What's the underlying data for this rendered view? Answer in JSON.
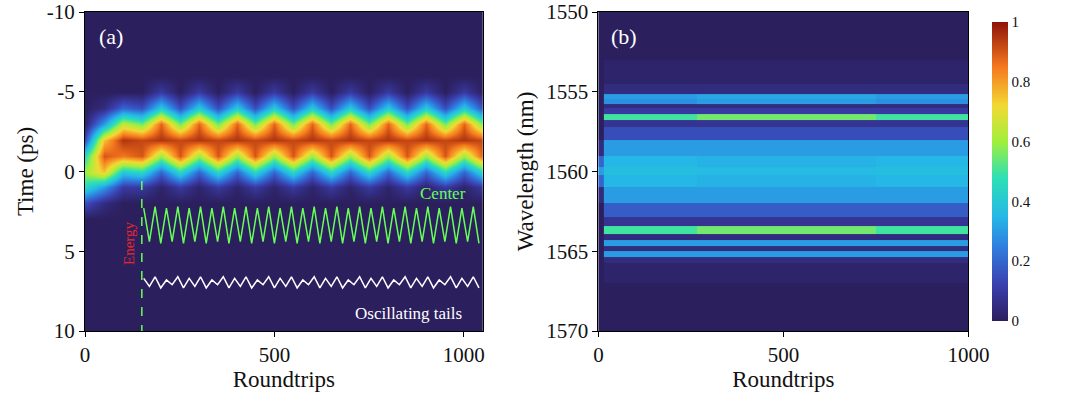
{
  "chart_data": [
    {
      "type": "heatmap",
      "panel_label": "(a)",
      "x_label": "Roundtrips",
      "y_label": "Time (ps)",
      "xlim": [
        0,
        1050
      ],
      "xticks": [
        0,
        500,
        1000
      ],
      "ylim": [
        10,
        -10
      ],
      "yticks": [
        -10,
        -5,
        0,
        5,
        10
      ],
      "x": [
        0,
        50,
        100,
        150,
        200,
        250,
        300,
        350,
        400,
        450,
        500,
        550,
        600,
        650,
        700,
        750,
        800,
        850,
        900,
        950,
        1000,
        1050
      ],
      "y": [
        -10,
        -9,
        -8,
        -7,
        -6,
        -5,
        -4,
        -3,
        -2,
        -1,
        0,
        1,
        2,
        3,
        4,
        5,
        6,
        7,
        8,
        9,
        10
      ],
      "z": [
        [
          0,
          0,
          0,
          0,
          0,
          0,
          0,
          0,
          0,
          0,
          0,
          0,
          0,
          0,
          0,
          0,
          0,
          0,
          0,
          0,
          0,
          0
        ],
        [
          0,
          0,
          0,
          0,
          0,
          0,
          0,
          0,
          0,
          0,
          0,
          0,
          0,
          0,
          0,
          0,
          0,
          0,
          0,
          0,
          0,
          0
        ],
        [
          0,
          0,
          0,
          0,
          0,
          0,
          0,
          0,
          0,
          0,
          0,
          0,
          0,
          0,
          0,
          0,
          0,
          0,
          0,
          0,
          0,
          0
        ],
        [
          0,
          0,
          0,
          0,
          0,
          0,
          0,
          0,
          0,
          0,
          0,
          0,
          0,
          0,
          0,
          0,
          0,
          0,
          0,
          0,
          0,
          0
        ],
        [
          0,
          0,
          0,
          0,
          0,
          0,
          0,
          0,
          0,
          0,
          0,
          0,
          0,
          0,
          0,
          0,
          0,
          0,
          0,
          0,
          0,
          0
        ],
        [
          0,
          0,
          0,
          0,
          0.1,
          0,
          0.1,
          0,
          0.1,
          0,
          0.1,
          0,
          0.1,
          0,
          0.1,
          0,
          0.1,
          0,
          0.1,
          0,
          0.1,
          0
        ],
        [
          0,
          0.05,
          0.2,
          0.15,
          0.4,
          0.15,
          0.4,
          0.15,
          0.4,
          0.15,
          0.4,
          0.15,
          0.4,
          0.15,
          0.4,
          0.15,
          0.4,
          0.15,
          0.4,
          0.15,
          0.4,
          0.15
        ],
        [
          0.02,
          0.3,
          0.65,
          0.55,
          0.88,
          0.55,
          0.88,
          0.55,
          0.88,
          0.55,
          0.88,
          0.55,
          0.88,
          0.55,
          0.88,
          0.55,
          0.88,
          0.55,
          0.88,
          0.55,
          0.88,
          0.55
        ],
        [
          0.15,
          0.75,
          0.95,
          0.92,
          0.95,
          0.92,
          0.95,
          0.92,
          0.95,
          0.92,
          0.95,
          0.92,
          0.95,
          0.92,
          0.95,
          0.92,
          0.95,
          0.92,
          0.95,
          0.92,
          0.95,
          0.92
        ],
        [
          0.45,
          0.9,
          0.85,
          0.9,
          0.6,
          0.9,
          0.6,
          0.9,
          0.6,
          0.9,
          0.6,
          0.9,
          0.6,
          0.9,
          0.6,
          0.9,
          0.6,
          0.9,
          0.6,
          0.9,
          0.6,
          0.9
        ],
        [
          0.6,
          0.75,
          0.4,
          0.45,
          0.2,
          0.45,
          0.2,
          0.45,
          0.2,
          0.45,
          0.2,
          0.45,
          0.2,
          0.45,
          0.2,
          0.45,
          0.2,
          0.45,
          0.2,
          0.45,
          0.2,
          0.45
        ],
        [
          0.45,
          0.3,
          0.1,
          0.1,
          0.02,
          0.1,
          0.02,
          0.1,
          0.02,
          0.1,
          0.02,
          0.1,
          0.02,
          0.1,
          0.02,
          0.1,
          0.02,
          0.1,
          0.02,
          0.1,
          0.02,
          0.1
        ],
        [
          0.15,
          0.05,
          0,
          0,
          0,
          0,
          0,
          0,
          0,
          0,
          0,
          0,
          0,
          0,
          0,
          0,
          0,
          0,
          0,
          0,
          0,
          0
        ],
        [
          0,
          0,
          0,
          0,
          0,
          0,
          0,
          0,
          0,
          0,
          0,
          0,
          0,
          0,
          0,
          0,
          0,
          0,
          0,
          0,
          0,
          0
        ],
        [
          0,
          0,
          0,
          0,
          0,
          0,
          0,
          0,
          0,
          0,
          0,
          0,
          0,
          0,
          0,
          0,
          0,
          0,
          0,
          0,
          0,
          0
        ],
        [
          0,
          0,
          0,
          0,
          0,
          0,
          0,
          0,
          0,
          0,
          0,
          0,
          0,
          0,
          0,
          0,
          0,
          0,
          0,
          0,
          0,
          0
        ],
        [
          0,
          0,
          0,
          0,
          0,
          0,
          0,
          0,
          0,
          0,
          0,
          0,
          0,
          0,
          0,
          0,
          0,
          0,
          0,
          0,
          0,
          0
        ],
        [
          0,
          0,
          0,
          0,
          0,
          0,
          0,
          0,
          0,
          0,
          0,
          0,
          0,
          0,
          0,
          0,
          0,
          0,
          0,
          0,
          0,
          0
        ],
        [
          0,
          0,
          0,
          0,
          0,
          0,
          0,
          0,
          0,
          0,
          0,
          0,
          0,
          0,
          0,
          0,
          0,
          0,
          0,
          0,
          0,
          0
        ],
        [
          0,
          0,
          0,
          0,
          0,
          0,
          0,
          0,
          0,
          0,
          0,
          0,
          0,
          0,
          0,
          0,
          0,
          0,
          0,
          0,
          0,
          0
        ],
        [
          0,
          0,
          0,
          0,
          0,
          0,
          0,
          0,
          0,
          0,
          0,
          0,
          0,
          0,
          0,
          0,
          0,
          0,
          0,
          0,
          0,
          0
        ]
      ],
      "series": [
        {
          "name": "Center",
          "type": "line",
          "color": "#66ff55",
          "label_x": 1010,
          "label_y": 1.4,
          "x": [
            155,
            170,
            185,
            200,
            215,
            230,
            245,
            260,
            275,
            290,
            305,
            320,
            335,
            350,
            365,
            380,
            395,
            410,
            425,
            440,
            455,
            470,
            485,
            500,
            515,
            530,
            545,
            560,
            575,
            590,
            605,
            620,
            635,
            650,
            665,
            680,
            695,
            710,
            725,
            740,
            755,
            770,
            785,
            800,
            815,
            830,
            845,
            860,
            875,
            890,
            905,
            920,
            935,
            950,
            965,
            980,
            995,
            1010,
            1025,
            1040
          ],
          "values": [
            2.3,
            4.4,
            2.2,
            4.5,
            2.3,
            4.4,
            2.2,
            4.5,
            2.3,
            4.4,
            2.2,
            4.5,
            2.3,
            4.4,
            2.2,
            4.5,
            2.3,
            4.4,
            2.2,
            4.5,
            2.3,
            4.4,
            2.2,
            4.5,
            2.3,
            4.4,
            2.2,
            4.5,
            2.3,
            4.4,
            2.2,
            4.5,
            2.3,
            4.4,
            2.2,
            4.5,
            2.3,
            4.4,
            2.2,
            4.5,
            2.3,
            4.4,
            2.2,
            4.5,
            2.3,
            4.4,
            2.2,
            4.5,
            2.3,
            4.4,
            2.2,
            4.5,
            2.3,
            4.4,
            2.2,
            4.5,
            2.3,
            4.4,
            2.2,
            4.5
          ]
        },
        {
          "name": "Oscillating tails",
          "type": "line",
          "color": "#ffffff",
          "label_x": 1000,
          "label_y": 8.9,
          "x": [
            155,
            170,
            185,
            200,
            215,
            230,
            245,
            260,
            275,
            290,
            305,
            320,
            335,
            350,
            365,
            380,
            395,
            410,
            425,
            440,
            455,
            470,
            485,
            500,
            515,
            530,
            545,
            560,
            575,
            590,
            605,
            620,
            635,
            650,
            665,
            680,
            695,
            710,
            725,
            740,
            755,
            770,
            785,
            800,
            815,
            830,
            845,
            860,
            875,
            890,
            905,
            920,
            935,
            950,
            965,
            980,
            995,
            1010,
            1025,
            1040
          ],
          "values": [
            6.7,
            7.2,
            6.6,
            7.3,
            6.8,
            7.1,
            6.6,
            7.3,
            6.7,
            7.2,
            6.6,
            7.3,
            6.8,
            7.1,
            6.6,
            7.3,
            6.7,
            7.2,
            6.6,
            7.3,
            6.8,
            7.1,
            6.6,
            7.3,
            6.7,
            7.2,
            6.6,
            7.3,
            6.8,
            7.1,
            6.6,
            7.3,
            6.7,
            7.2,
            6.6,
            7.3,
            6.8,
            7.1,
            6.6,
            7.3,
            6.7,
            7.2,
            6.6,
            7.3,
            6.8,
            7.1,
            6.6,
            7.3,
            6.7,
            7.2,
            6.6,
            7.3,
            6.8,
            7.1,
            6.6,
            7.3,
            6.7,
            7.2,
            6.6,
            7.3
          ]
        }
      ],
      "annotations": [
        {
          "text": "Energy",
          "x": 118,
          "y": 4.5,
          "color": "#e8282a"
        }
      ],
      "divider": {
        "x": 150,
        "y": [
          0.6,
          10
        ],
        "color": "#66ff55",
        "line_style": "dash"
      }
    },
    {
      "type": "heatmap",
      "panel_label": "(b)",
      "x_label": "Roundtrips",
      "y_label": "Wavelength (nm)",
      "xlim": [
        0,
        1000
      ],
      "xticks": [
        0,
        500,
        1000
      ],
      "ylim": [
        1570,
        1550
      ],
      "yticks": [
        1550,
        1555,
        1560,
        1565,
        1570
      ],
      "x": [
        0,
        30,
        500,
        1000
      ],
      "y": [
        1550,
        1552,
        1554,
        1555,
        1555.3,
        1555.6,
        1555.9,
        1556.2,
        1556.6,
        1556.9,
        1557.5,
        1558.5,
        1559.5,
        1560,
        1560.5,
        1561.5,
        1562.5,
        1563.2,
        1563.7,
        1564.1,
        1564.5,
        1564.8,
        1565.2,
        1565.5,
        1566,
        1568,
        1570
      ],
      "z": [
        [
          0,
          0,
          0,
          0
        ],
        [
          0,
          0,
          0,
          0
        ],
        [
          0,
          0.02,
          0.02,
          0.02
        ],
        [
          0,
          0.05,
          0.05,
          0.05
        ],
        [
          0,
          0.3,
          0.32,
          0.3
        ],
        [
          0,
          0.28,
          0.3,
          0.28
        ],
        [
          0,
          0.05,
          0.05,
          0.05
        ],
        [
          0,
          0.1,
          0.1,
          0.1
        ],
        [
          0,
          0.5,
          0.55,
          0.5
        ],
        [
          0,
          0.08,
          0.08,
          0.08
        ],
        [
          0,
          0.15,
          0.15,
          0.15
        ],
        [
          0.05,
          0.3,
          0.3,
          0.3
        ],
        [
          0.2,
          0.35,
          0.34,
          0.35
        ],
        [
          0.3,
          0.37,
          0.36,
          0.37
        ],
        [
          0.2,
          0.35,
          0.34,
          0.35
        ],
        [
          0.05,
          0.3,
          0.3,
          0.3
        ],
        [
          0,
          0.18,
          0.18,
          0.18
        ],
        [
          0,
          0.08,
          0.08,
          0.08
        ],
        [
          0,
          0.5,
          0.55,
          0.5
        ],
        [
          0,
          0.05,
          0.05,
          0.05
        ],
        [
          0,
          0.3,
          0.3,
          0.3
        ],
        [
          0,
          0.05,
          0.05,
          0.05
        ],
        [
          0,
          0.3,
          0.3,
          0.3
        ],
        [
          0,
          0.05,
          0.05,
          0.05
        ],
        [
          0,
          0.02,
          0.02,
          0.02
        ],
        [
          0,
          0,
          0,
          0
        ],
        [
          0,
          0,
          0,
          0
        ]
      ],
      "colorbar": {
        "range": [
          0,
          1
        ],
        "ticks": [
          0,
          0.2,
          0.4,
          0.6,
          0.8,
          1
        ]
      }
    }
  ]
}
